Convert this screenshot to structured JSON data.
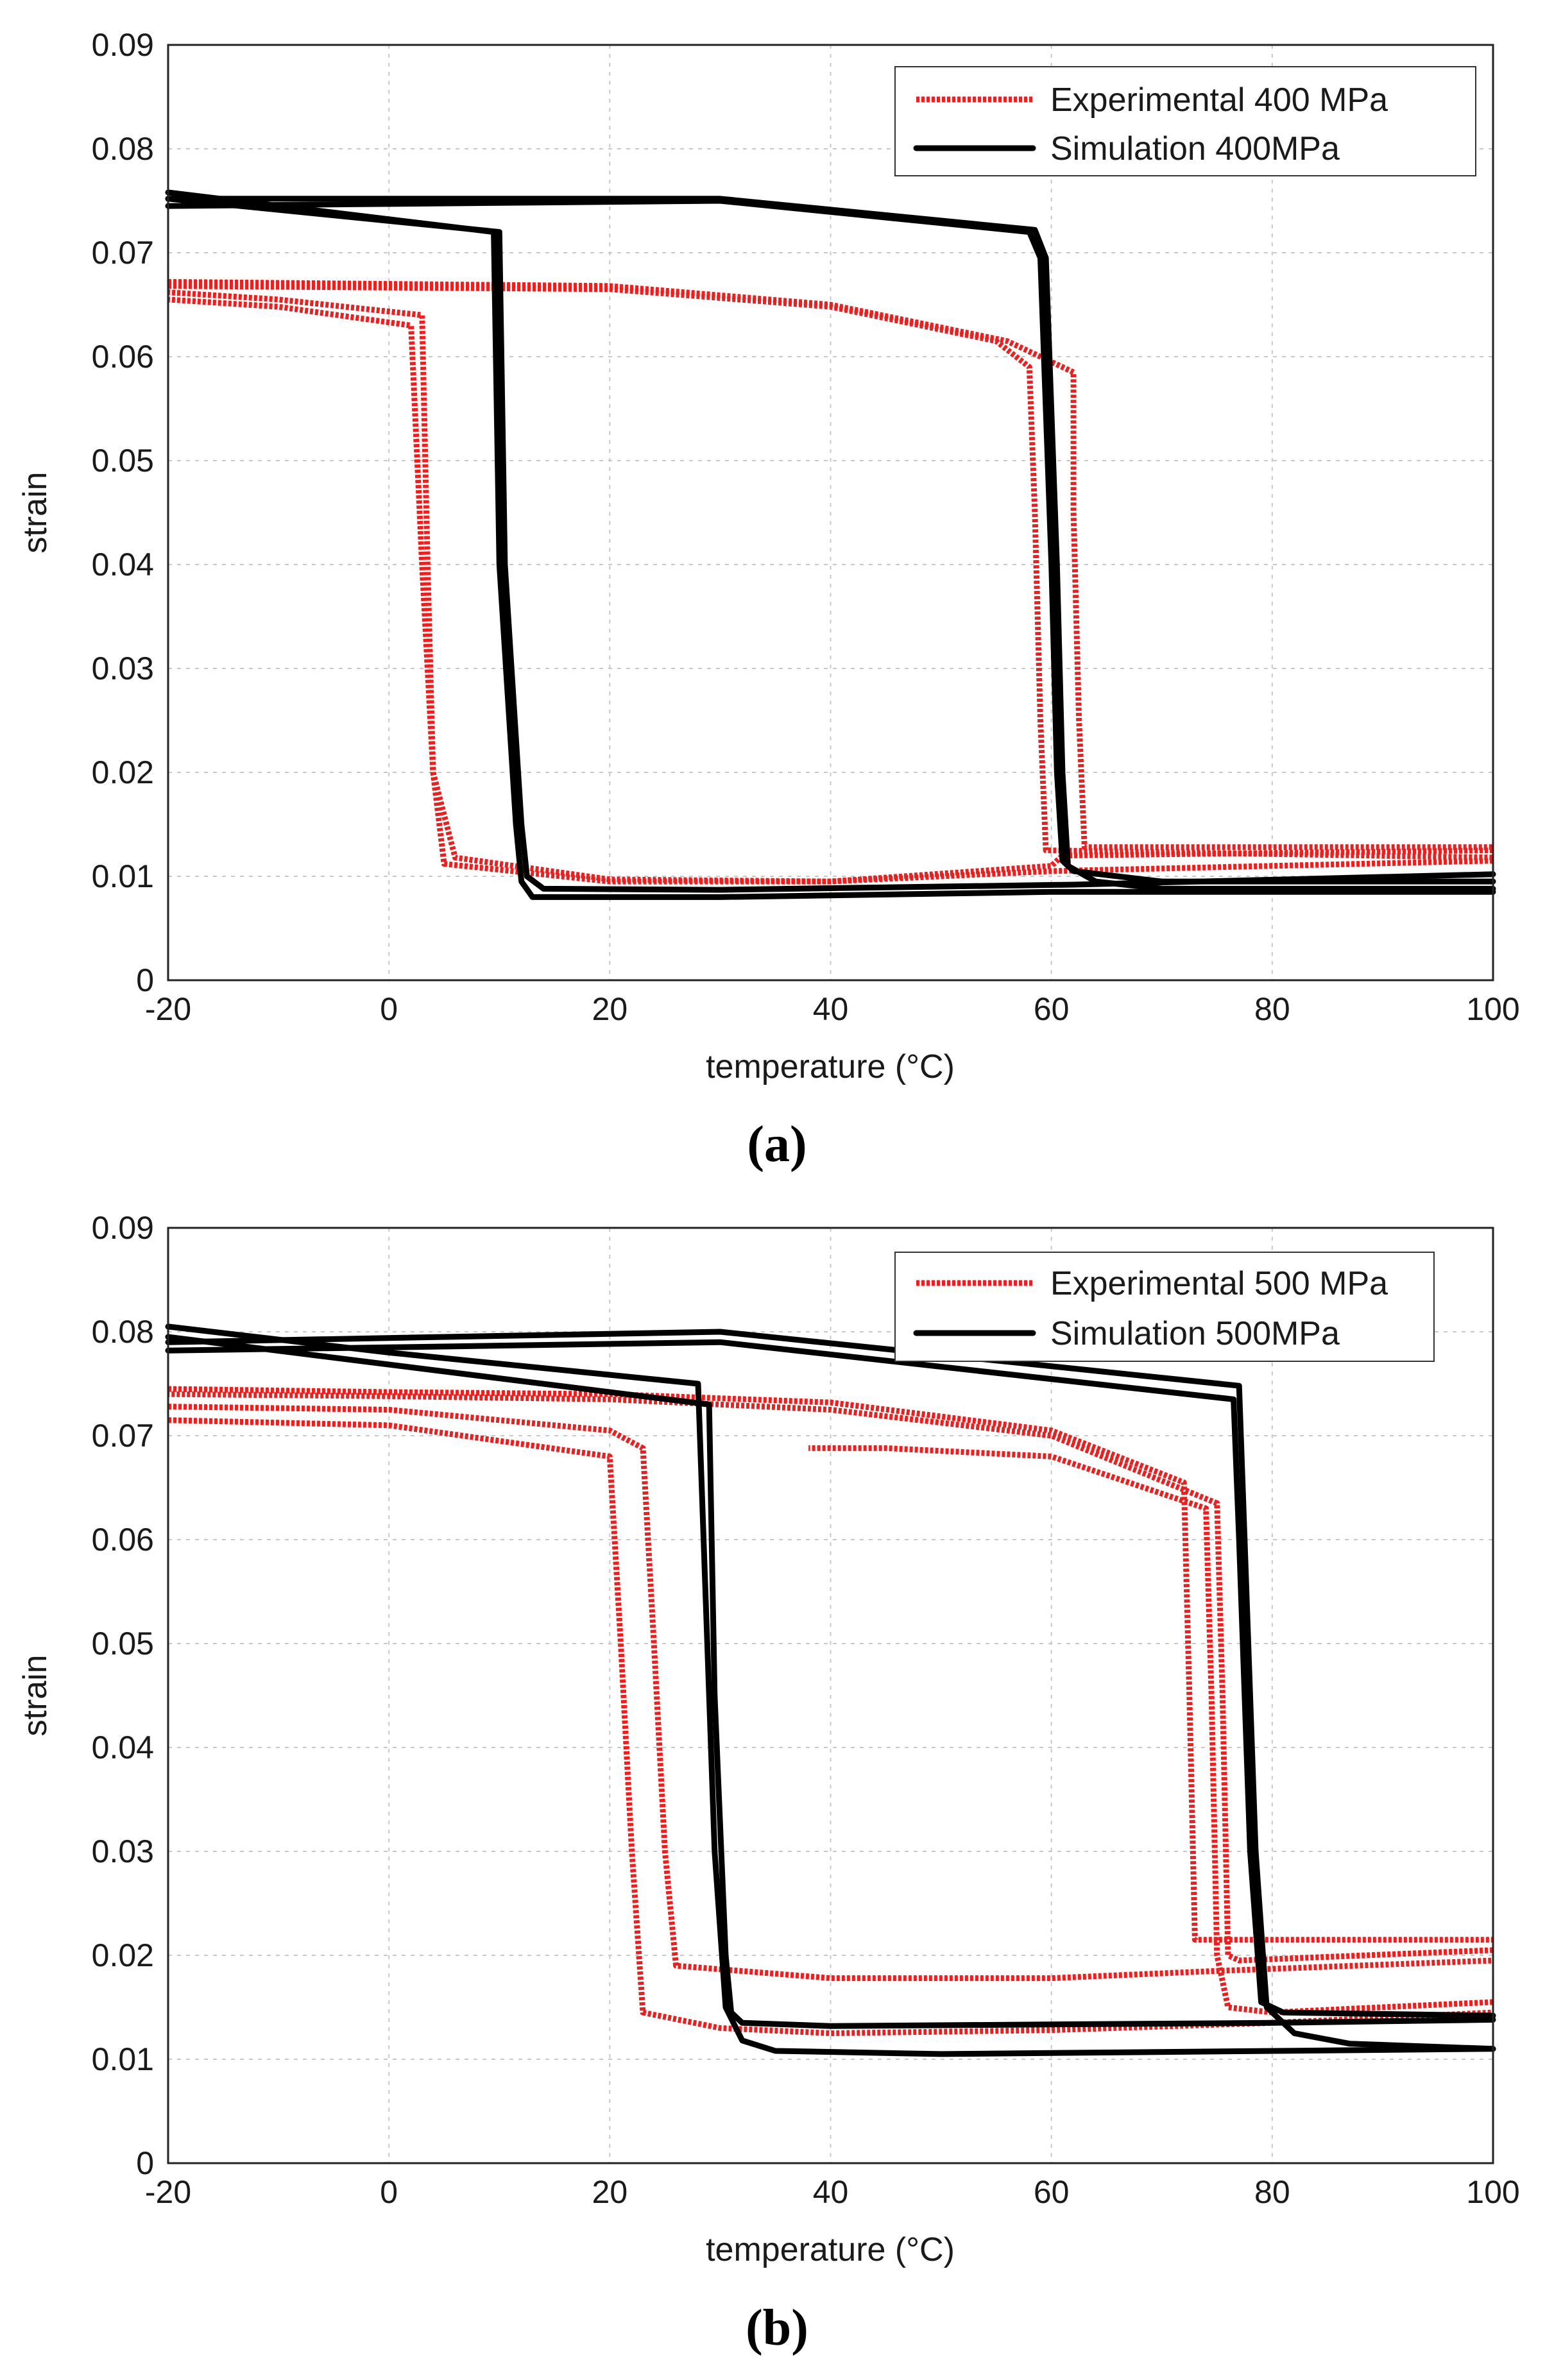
{
  "chart_data": [
    {
      "id": "a",
      "type": "line",
      "caption_letter": "a",
      "xlabel": "temperature (°C)",
      "ylabel": "strain",
      "xlim": [
        -20,
        100
      ],
      "ylim": [
        0,
        0.09
      ],
      "xticks": [
        "-20",
        "0",
        "20",
        "40",
        "60",
        "80",
        "100"
      ],
      "yticks": [
        "0",
        "0.01",
        "0.02",
        "0.03",
        "0.04",
        "0.05",
        "0.06",
        "0.07",
        "0.08",
        "0.09"
      ],
      "grid": true,
      "legend_position": "top-right",
      "series": [
        {
          "name": "Experimental 400 MPa",
          "style": "experimental",
          "color": "#e8201f",
          "loops": [
            [
              [
                100,
                0.0115
              ],
              [
                60,
                0.0105
              ],
              [
                40,
                0.0095
              ],
              [
                20,
                0.0095
              ],
              [
                5,
                0.0112
              ],
              [
                4,
                0.02
              ],
              [
                3,
                0.04
              ],
              [
                2,
                0.063
              ],
              [
                -10,
                0.0648
              ],
              [
                -20,
                0.0655
              ]
            ],
            [
              [
                -20,
                0.0668
              ],
              [
                20,
                0.0665
              ],
              [
                40,
                0.0648
              ],
              [
                55,
                0.0615
              ],
              [
                58,
                0.059
              ],
              [
                58.5,
                0.045
              ],
              [
                59,
                0.025
              ],
              [
                59.5,
                0.0125
              ],
              [
                100,
                0.0118
              ]
            ],
            [
              [
                100,
                0.0125
              ],
              [
                61,
                0.012
              ],
              [
                60,
                0.011
              ],
              [
                40,
                0.0095
              ],
              [
                20,
                0.0097
              ],
              [
                6,
                0.0118
              ],
              [
                4,
                0.02
              ],
              [
                3.5,
                0.04
              ],
              [
                3,
                0.064
              ],
              [
                -10,
                0.0655
              ],
              [
                -20,
                0.0662
              ]
            ],
            [
              [
                -20,
                0.0672
              ],
              [
                20,
                0.0668
              ],
              [
                40,
                0.065
              ],
              [
                56,
                0.0615
              ],
              [
                62,
                0.0585
              ],
              [
                62,
                0.045
              ],
              [
                62.5,
                0.025
              ],
              [
                63,
                0.0128
              ],
              [
                100,
                0.0128
              ]
            ]
          ]
        },
        {
          "name": "Simulation 400MPa",
          "style": "simulation",
          "color": "#000000",
          "loops": [
            [
              [
                -20,
                0.0745
              ],
              [
                30,
                0.075
              ],
              [
                58,
                0.072
              ],
              [
                59,
                0.0695
              ],
              [
                60,
                0.04
              ],
              [
                60.5,
                0.02
              ],
              [
                61,
                0.0115
              ],
              [
                62,
                0.0105
              ],
              [
                70,
                0.0095
              ],
              [
                100,
                0.0095
              ]
            ],
            [
              [
                100,
                0.0085
              ],
              [
                60,
                0.0085
              ],
              [
                30,
                0.008
              ],
              [
                13,
                0.008
              ],
              [
                12,
                0.0095
              ],
              [
                11.5,
                0.015
              ],
              [
                10,
                0.04
              ],
              [
                9.5,
                0.072
              ],
              [
                -20,
                0.0758
              ]
            ],
            [
              [
                -20,
                0.0752
              ],
              [
                30,
                0.0752
              ],
              [
                58.5,
                0.0722
              ],
              [
                59.5,
                0.0695
              ],
              [
                60.5,
                0.04
              ],
              [
                61,
                0.02
              ],
              [
                61.5,
                0.011
              ],
              [
                64,
                0.0095
              ],
              [
                70,
                0.0088
              ],
              [
                100,
                0.0088
              ]
            ],
            [
              [
                100,
                0.0102
              ],
              [
                62,
                0.0092
              ],
              [
                30,
                0.0087
              ],
              [
                14,
                0.0088
              ],
              [
                12.5,
                0.01
              ],
              [
                12,
                0.015
              ],
              [
                10.5,
                0.04
              ],
              [
                10,
                0.072
              ],
              [
                -20,
                0.0752
              ]
            ]
          ]
        }
      ]
    },
    {
      "id": "b",
      "type": "line",
      "caption_letter": "b",
      "xlabel": "temperature (°C)",
      "ylabel": "strain",
      "xlim": [
        -20,
        100
      ],
      "ylim": [
        0,
        0.09
      ],
      "xticks": [
        "-20",
        "0",
        "20",
        "40",
        "60",
        "80",
        "100"
      ],
      "yticks": [
        "0",
        "0.01",
        "0.02",
        "0.03",
        "0.04",
        "0.05",
        "0.06",
        "0.07",
        "0.08",
        "0.09"
      ],
      "grid": true,
      "legend_position": "top-right",
      "series": [
        {
          "name": "Experimental 500 MPa",
          "style": "experimental",
          "color": "#e8201f",
          "loops": [
            [
              [
                -20,
                0.0715
              ],
              [
                0,
                0.071
              ],
              [
                20,
                0.068
              ],
              [
                21,
                0.05
              ],
              [
                22,
                0.03
              ],
              [
                23,
                0.0145
              ],
              [
                30,
                0.013
              ],
              [
                40,
                0.0125
              ],
              [
                60,
                0.0128
              ],
              [
                80,
                0.0135
              ],
              [
                100,
                0.0145
              ]
            ],
            [
              [
                100,
                0.0155
              ],
              [
                80,
                0.0145
              ],
              [
                76,
                0.015
              ],
              [
                75,
                0.02
              ],
              [
                74.5,
                0.045
              ],
              [
                74,
                0.063
              ],
              [
                60,
                0.068
              ],
              [
                45,
                0.0688
              ],
              [
                38,
                0.0688
              ]
            ],
            [
              [
                -20,
                0.0728
              ],
              [
                0,
                0.0725
              ],
              [
                20,
                0.0705
              ],
              [
                23,
                0.0688
              ],
              [
                24,
                0.05
              ],
              [
                25,
                0.03
              ],
              [
                26,
                0.019
              ],
              [
                40,
                0.0178
              ],
              [
                60,
                0.0178
              ],
              [
                75,
                0.0185
              ],
              [
                100,
                0.0195
              ]
            ],
            [
              [
                100,
                0.0205
              ],
              [
                77,
                0.0195
              ],
              [
                76,
                0.02
              ],
              [
                75.5,
                0.045
              ],
              [
                75,
                0.0635
              ],
              [
                60,
                0.07
              ],
              [
                40,
                0.0725
              ],
              [
                20,
                0.0735
              ],
              [
                0,
                0.0738
              ],
              [
                -20,
                0.074
              ]
            ],
            [
              [
                -20,
                0.0745
              ],
              [
                0,
                0.0742
              ],
              [
                20,
                0.074
              ],
              [
                40,
                0.0732
              ],
              [
                60,
                0.0705
              ],
              [
                72,
                0.0655
              ],
              [
                72.5,
                0.045
              ],
              [
                73,
                0.0215
              ],
              [
                100,
                0.0215
              ]
            ]
          ]
        },
        {
          "name": "Simulation 500MPa",
          "style": "simulation",
          "color": "#000000",
          "loops": [
            [
              [
                -20,
                0.0805
              ],
              [
                0,
                0.078
              ],
              [
                28,
                0.075
              ],
              [
                28.5,
                0.06
              ],
              [
                29.5,
                0.03
              ],
              [
                30.5,
                0.015
              ],
              [
                32,
                0.0118
              ],
              [
                35,
                0.0108
              ],
              [
                50,
                0.0105
              ],
              [
                100,
                0.011
              ]
            ],
            [
              [
                -20,
                0.079
              ],
              [
                30,
                0.08
              ],
              [
                77,
                0.0748
              ],
              [
                77.5,
                0.06
              ],
              [
                78.5,
                0.03
              ],
              [
                79.5,
                0.015
              ],
              [
                82,
                0.0125
              ],
              [
                87,
                0.0115
              ],
              [
                100,
                0.011
              ]
            ],
            [
              [
                100,
                0.0138
              ],
              [
                80,
                0.0135
              ],
              [
                40,
                0.0132
              ],
              [
                32,
                0.0135
              ],
              [
                31,
                0.0145
              ],
              [
                30.5,
                0.02
              ],
              [
                29.5,
                0.045
              ],
              [
                29,
                0.073
              ],
              [
                -20,
                0.0795
              ]
            ],
            [
              [
                -20,
                0.0782
              ],
              [
                0,
                0.0785
              ],
              [
                30,
                0.079
              ],
              [
                76.5,
                0.0735
              ],
              [
                77,
                0.06
              ],
              [
                78,
                0.03
              ],
              [
                79,
                0.0155
              ],
              [
                81,
                0.0145
              ],
              [
                100,
                0.0142
              ]
            ]
          ]
        }
      ]
    }
  ]
}
